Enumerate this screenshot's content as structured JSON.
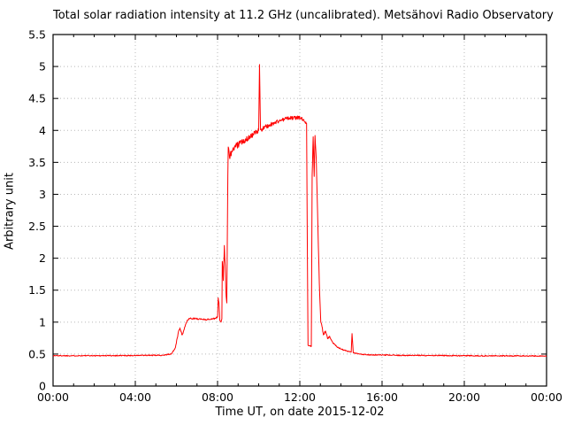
{
  "window": {
    "background": "#ffffff",
    "frame_color": "#000000",
    "grid_color": "#b8b8b8"
  },
  "chart_data": {
    "type": "line",
    "title": "Total solar radiation intensity at 11.2 GHz (uncalibrated). Metsähovi Radio Observatory",
    "xlabel": "Time UT, on date 2015-12-02",
    "ylabel": "Arbitrary unit",
    "xlim": [
      0,
      24
    ],
    "ylim": [
      0,
      5.5
    ],
    "x_tick_hours": [
      0,
      4,
      8,
      12,
      16,
      20,
      24
    ],
    "x_tick_labels": [
      "00:00",
      "04:00",
      "08:00",
      "12:00",
      "16:00",
      "20:00",
      "00:00"
    ],
    "x_minor_step_hours": 1,
    "y_tick_step": 0.5,
    "y_tick_labels": [
      "0",
      "0.5",
      "1",
      "1.5",
      "2",
      "2.5",
      "3",
      "3.5",
      "4",
      "4.5",
      "5",
      "5.5"
    ],
    "grid": true,
    "legend": "none",
    "line_color": "#ff0000",
    "noise_seed": 1337,
    "series": [
      {
        "name": "total solar radiation intensity (arbitrary units)",
        "points_format": [
          "time_hours_UT",
          "value",
          "noise_halfamplitude"
        ],
        "points": [
          [
            0.0,
            0.475,
            0.008
          ],
          [
            2.0,
            0.475,
            0.008
          ],
          [
            4.0,
            0.478,
            0.008
          ],
          [
            5.3,
            0.482,
            0.008
          ],
          [
            5.75,
            0.5,
            0.01
          ],
          [
            5.95,
            0.6,
            0.012
          ],
          [
            6.1,
            0.85,
            0.015
          ],
          [
            6.17,
            0.91,
            0.015
          ],
          [
            6.28,
            0.8,
            0.015
          ],
          [
            6.42,
            0.93,
            0.015
          ],
          [
            6.53,
            1.03,
            0.012
          ],
          [
            6.65,
            1.06,
            0.012
          ],
          [
            7.1,
            1.05,
            0.012
          ],
          [
            7.5,
            1.04,
            0.012
          ],
          [
            7.9,
            1.06,
            0.012
          ],
          [
            8.0,
            1.08,
            0.01
          ],
          [
            8.03,
            1.38,
            0.01
          ],
          [
            8.07,
            1.3,
            0.02
          ],
          [
            8.11,
            1.03,
            0.01
          ],
          [
            8.17,
            1.0,
            0.01
          ],
          [
            8.21,
            1.05,
            0.01
          ],
          [
            8.23,
            1.95,
            0.12
          ],
          [
            8.28,
            1.65,
            0.12
          ],
          [
            8.33,
            2.2,
            0.12
          ],
          [
            8.37,
            1.9,
            0.1
          ],
          [
            8.42,
            1.4,
            0.06
          ],
          [
            8.45,
            1.3,
            0.04
          ],
          [
            8.48,
            2.5,
            0.05
          ],
          [
            8.5,
            3.3,
            0.04
          ],
          [
            8.52,
            3.74,
            0.05
          ],
          [
            8.58,
            3.58,
            0.05
          ],
          [
            8.68,
            3.66,
            0.05
          ],
          [
            8.85,
            3.74,
            0.05
          ],
          [
            9.1,
            3.8,
            0.045
          ],
          [
            9.5,
            3.89,
            0.045
          ],
          [
            9.9,
            3.97,
            0.04
          ],
          [
            10.0,
            4.0,
            0.035
          ],
          [
            10.04,
            5.03,
            0.003
          ],
          [
            10.09,
            4.01,
            0.035
          ],
          [
            10.5,
            4.08,
            0.035
          ],
          [
            11.0,
            4.15,
            0.03
          ],
          [
            11.4,
            4.19,
            0.03
          ],
          [
            12.0,
            4.2,
            0.028
          ],
          [
            12.2,
            4.16,
            0.025
          ],
          [
            12.33,
            4.11,
            0.02
          ],
          [
            12.37,
            2.0,
            0.01
          ],
          [
            12.4,
            0.64,
            0.008
          ],
          [
            12.56,
            0.62,
            0.008
          ],
          [
            12.6,
            3.3,
            0.03
          ],
          [
            12.65,
            3.9,
            0.03
          ],
          [
            12.7,
            3.28,
            0.05
          ],
          [
            12.74,
            3.92,
            0.03
          ],
          [
            12.8,
            3.55,
            0.04
          ],
          [
            12.88,
            2.5,
            0.03
          ],
          [
            12.95,
            1.6,
            0.02
          ],
          [
            13.02,
            1.0,
            0.015
          ],
          [
            13.08,
            0.93,
            0.015
          ],
          [
            13.15,
            0.8,
            0.015
          ],
          [
            13.25,
            0.86,
            0.015
          ],
          [
            13.35,
            0.74,
            0.015
          ],
          [
            13.45,
            0.78,
            0.012
          ],
          [
            13.6,
            0.68,
            0.012
          ],
          [
            13.8,
            0.62,
            0.01
          ],
          [
            14.0,
            0.58,
            0.01
          ],
          [
            14.3,
            0.545,
            0.008
          ],
          [
            14.5,
            0.53,
            0.008
          ],
          [
            14.54,
            0.82,
            0.004
          ],
          [
            14.6,
            0.52,
            0.008
          ],
          [
            14.9,
            0.5,
            0.008
          ],
          [
            15.5,
            0.487,
            0.008
          ],
          [
            17.0,
            0.48,
            0.008
          ],
          [
            20.0,
            0.475,
            0.008
          ],
          [
            24.0,
            0.47,
            0.008
          ]
        ]
      }
    ]
  }
}
